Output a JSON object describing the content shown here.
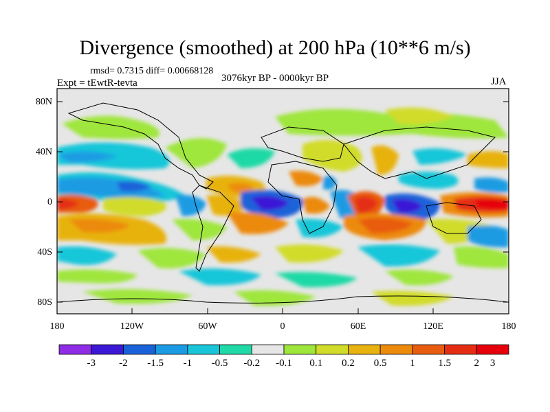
{
  "title": "Divergence (smoothed) at 200 hPa (10**6 m/s)",
  "stats_line": "rmsd= 0.7315 diff= 0.00668128",
  "experiment_label": "Expt = tEwtR-tevta",
  "period_label": "3076kyr BP - 0000kyr BP",
  "season_label": "JJA",
  "axes": {
    "lat_ticks": [
      "80N",
      "40N",
      "0",
      "40S",
      "80S"
    ],
    "lon_ticks": [
      "180",
      "120W",
      "60W",
      "0",
      "60E",
      "120E",
      "180"
    ]
  },
  "colorbar": {
    "colors": [
      "#8e2ce6",
      "#3b17d6",
      "#1a62d9",
      "#1a9be3",
      "#19c6d9",
      "#1fd9a6",
      "#e6e6e6",
      "#9fe63c",
      "#d1dc2a",
      "#e8b210",
      "#ec8a0c",
      "#e85c10",
      "#e42d12",
      "#e6000c"
    ],
    "labels": [
      "-3",
      "-2",
      "-1.5",
      "-1",
      "-0.5",
      "-0.2",
      "-0.1",
      "0.1",
      "0.2",
      "0.5",
      "1",
      "1.5",
      "2",
      "3"
    ]
  }
}
